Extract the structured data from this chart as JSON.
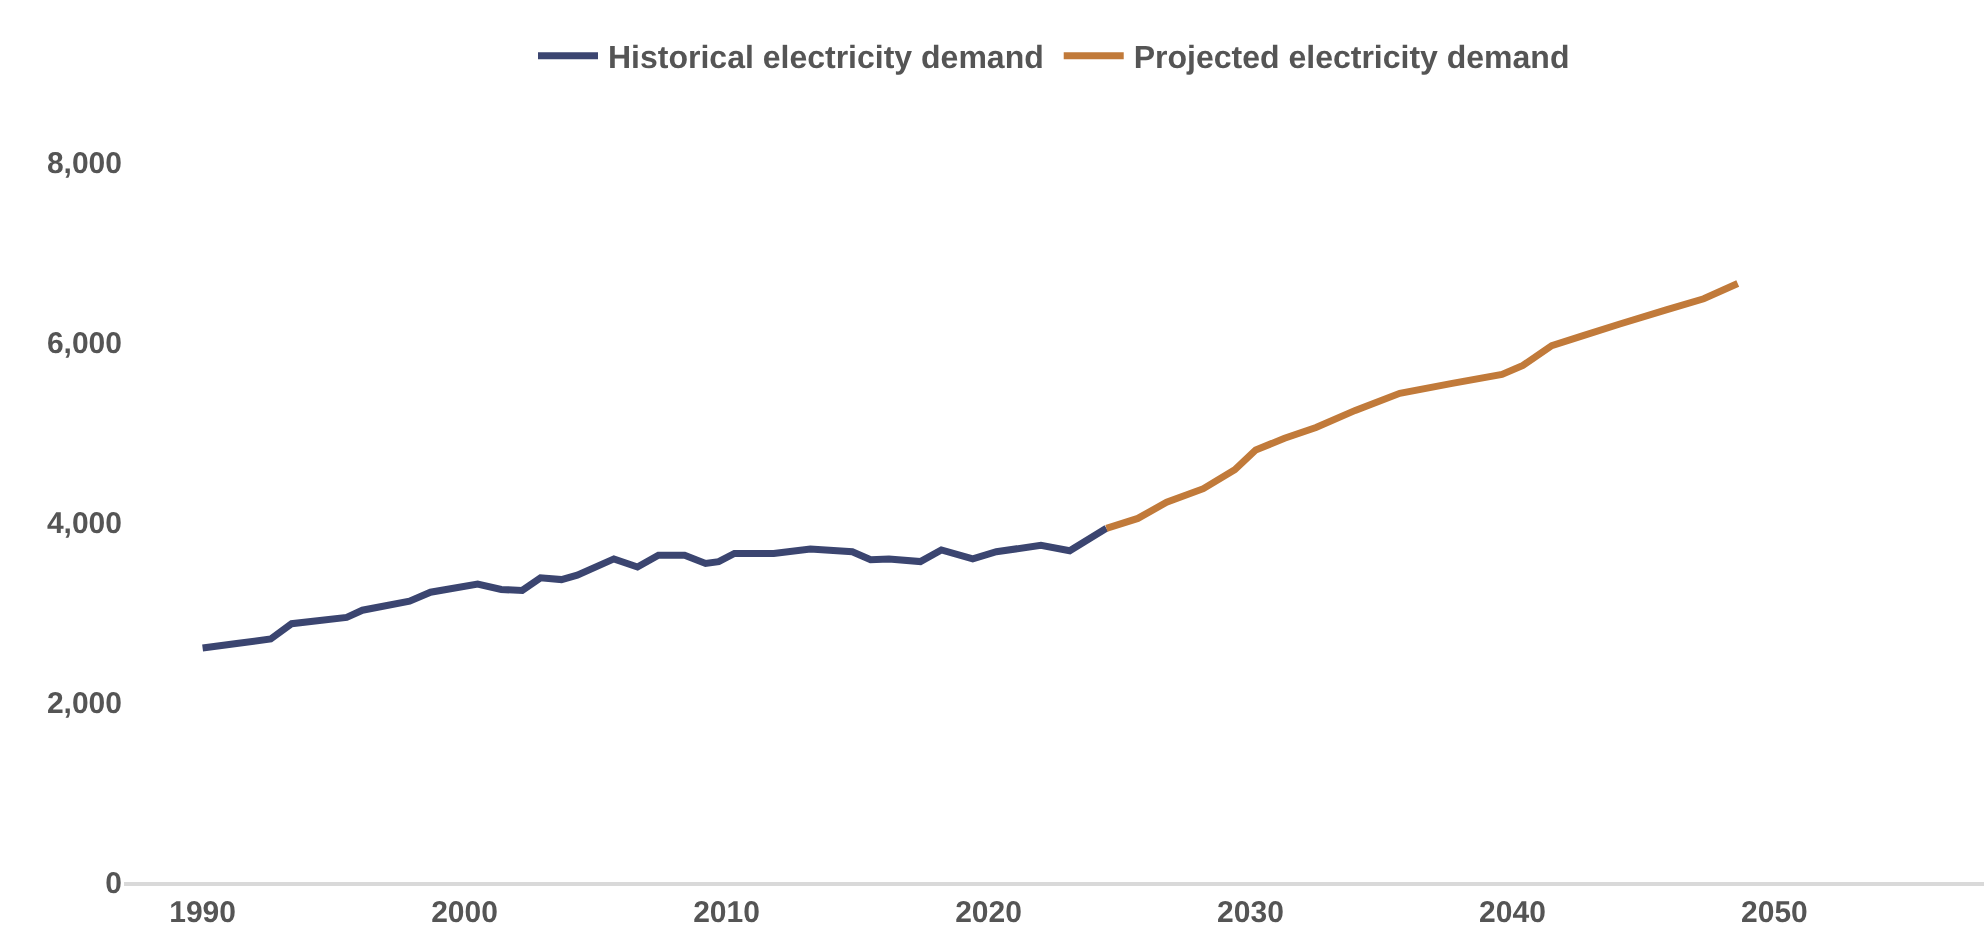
{
  "chart_data": {
    "type": "line",
    "series": [
      {
        "name": "Historical electricity demand",
        "color": "#3b4570",
        "x": [
          1990.0,
          1991.3,
          1992.6,
          1993.4,
          1995.5,
          1996.1,
          1997.9,
          1998.7,
          2000.5,
          2001.4,
          2002.2,
          2002.9,
          2003.7,
          2004.3,
          2005.7,
          2006.6,
          2007.4,
          2008.4,
          2009.2,
          2009.7,
          2010.3,
          2011.8,
          2013.2,
          2014.8,
          2015.5,
          2016.2,
          2017.4,
          2018.2,
          2019.4,
          2020.3,
          2022.0,
          2023.1,
          2024.5
        ],
        "values": [
          2600,
          2650,
          2700,
          2870,
          2940,
          3020,
          3120,
          3220,
          3310,
          3250,
          3240,
          3380,
          3360,
          3410,
          3590,
          3500,
          3630,
          3630,
          3540,
          3560,
          3650,
          3650,
          3700,
          3670,
          3580,
          3590,
          3560,
          3690,
          3590,
          3670,
          3740,
          3680,
          3930
        ]
      },
      {
        "name": "Projected electricity demand",
        "color": "#c17a3a",
        "x": [
          2024.5,
          2025.7,
          2026.8,
          2028.2,
          2029.4,
          2030.2,
          2031.3,
          2032.5,
          2034.0,
          2035.7,
          2037.7,
          2039.6,
          2040.4,
          2041.5,
          2042.7,
          2044.1,
          2045.9,
          2047.3,
          2048.6
        ],
        "values": [
          3930,
          4040,
          4220,
          4370,
          4580,
          4800,
          4930,
          5050,
          5240,
          5430,
          5540,
          5640,
          5740,
          5960,
          6070,
          6200,
          6360,
          6480,
          6650
        ]
      }
    ],
    "xlim": [
      1987,
      2058
    ],
    "xticks": [
      1990,
      2000,
      2010,
      2020,
      2030,
      2040,
      2050
    ],
    "ylim": [
      0,
      8000
    ],
    "yticks": [
      {
        "value": 0,
        "label": "0"
      },
      {
        "value": 2000,
        "label": "2,000"
      },
      {
        "value": 4000,
        "label": "4,000"
      },
      {
        "value": 6000,
        "label": "6,000"
      },
      {
        "value": 8000,
        "label": "8,000"
      }
    ],
    "legend": "top",
    "marker": "none",
    "line_style": "solid"
  }
}
